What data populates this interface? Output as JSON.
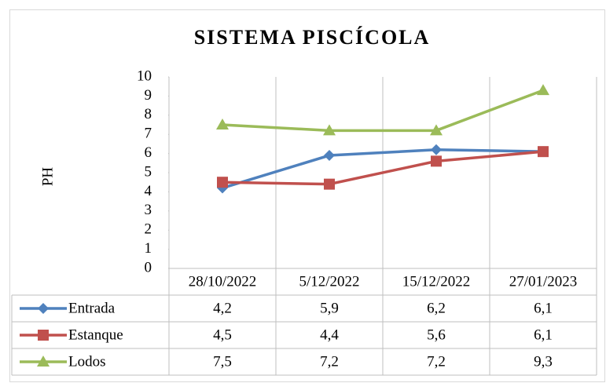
{
  "chart_data": {
    "type": "line",
    "title": "SISTEMA PISCÍCOLA",
    "y_label": "PH",
    "categories": [
      "28/10/2022",
      "5/12/2022",
      "15/12/2022",
      "27/01/2023"
    ],
    "series": [
      {
        "name": "Entrada",
        "color": "#4f81bd",
        "marker": "diamond",
        "values": [
          4.2,
          5.9,
          6.2,
          6.1
        ],
        "value_labels": [
          "4,2",
          "5,9",
          "6,2",
          "6,1"
        ]
      },
      {
        "name": "Estanque",
        "color": "#c0504d",
        "marker": "square",
        "values": [
          4.5,
          4.4,
          5.6,
          6.1
        ],
        "value_labels": [
          "4,5",
          "4,4",
          "5,6",
          "6,1"
        ]
      },
      {
        "name": "Lodos",
        "color": "#9bbb59",
        "marker": "triangle",
        "values": [
          7.5,
          7.2,
          7.2,
          9.3
        ],
        "value_labels": [
          "7,5",
          "7,2",
          "7,2",
          "9,3"
        ]
      }
    ],
    "ylim": [
      0,
      10
    ],
    "yticks": [
      0,
      1,
      2,
      3,
      4,
      5,
      6,
      7,
      8,
      9,
      10
    ]
  }
}
